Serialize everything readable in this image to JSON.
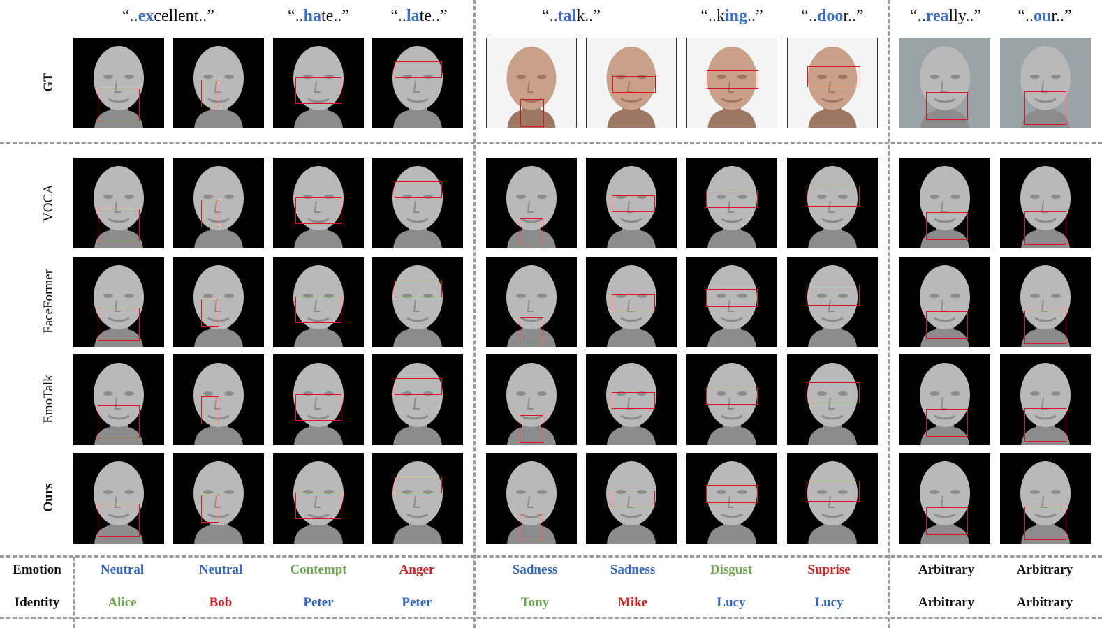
{
  "columns": [
    {
      "pre": "“..",
      "hl": "ex",
      "post": "cellent..”"
    },
    {
      "pre": "“..",
      "hl": "ha",
      "post": "te..”"
    },
    {
      "pre": "“..",
      "hl": "la",
      "post": "te..”"
    },
    {
      "pre": "“..",
      "hl": "tal",
      "post": "k..”"
    },
    {
      "pre": "“..k",
      "hl": "ing",
      "post": "..”"
    },
    {
      "pre": "“..",
      "hl": "doo",
      "post": "r..”"
    },
    {
      "pre": "“..",
      "hl": "rea",
      "post": "lly..”"
    },
    {
      "pre": "“..",
      "hl": "ou",
      "post": "r..”"
    }
  ],
  "row_labels": {
    "gt": "GT",
    "voca": "VOCA",
    "faceformer": "FaceFormer",
    "emotalk": "EmoTalk",
    "ours": "Ours"
  },
  "footer": {
    "emotion_label": "Emotion",
    "identity_label": "Identity",
    "emotions": [
      {
        "text": "Neutral",
        "color": "#2f64c8"
      },
      {
        "text": "Neutral",
        "color": "#2f64c8"
      },
      {
        "text": "Contempt",
        "color": "#6aa84f"
      },
      {
        "text": "Anger",
        "color": "#d42020"
      },
      {
        "text": "Sadness",
        "color": "#2f64c8"
      },
      {
        "text": "Sadness",
        "color": "#2f64c8"
      },
      {
        "text": "Disgust",
        "color": "#6aa84f"
      },
      {
        "text": "Suprise",
        "color": "#d42020"
      },
      {
        "text": "Arbitrary",
        "color": "#111111"
      },
      {
        "text": "Arbitrary",
        "color": "#111111"
      }
    ],
    "identities": [
      {
        "text": "Alice",
        "color": "#6aa84f"
      },
      {
        "text": "Bob",
        "color": "#d42020"
      },
      {
        "text": "Peter",
        "color": "#2f64c8"
      },
      {
        "text": "Peter",
        "color": "#2f64c8"
      },
      {
        "text": "Tony",
        "color": "#6aa84f"
      },
      {
        "text": "Mike",
        "color": "#d42020"
      },
      {
        "text": "Lucy",
        "color": "#2f64c8"
      },
      {
        "text": "Lucy",
        "color": "#2f64c8"
      },
      {
        "text": "Arbitrary",
        "color": "#111111"
      },
      {
        "text": "Arbitrary",
        "color": "#111111"
      }
    ]
  },
  "colors": {
    "highlight": "#3a6fd0",
    "box": "#e0141b",
    "divider": "#9a9a9a"
  }
}
